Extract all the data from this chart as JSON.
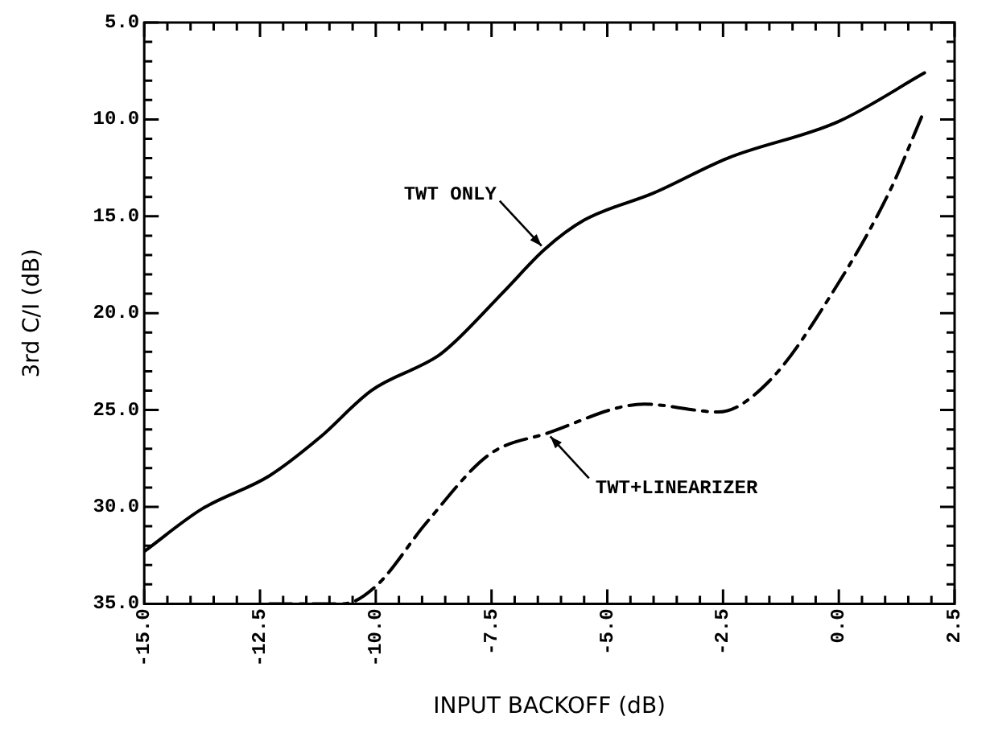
{
  "chart_data": {
    "type": "line",
    "xlabel": "INPUT BACKOFF (dB)",
    "ylabel": "3rd C/I (dB)",
    "xlim": [
      -15,
      2.5
    ],
    "ylim": [
      35,
      5
    ],
    "xticks": [
      {
        "value": -15,
        "label": "-15.0"
      },
      {
        "value": -12.5,
        "label": "-12.5"
      },
      {
        "value": -10,
        "label": "-10.0"
      },
      {
        "value": -7.5,
        "label": "-7.5"
      },
      {
        "value": -5,
        "label": "-5.0"
      },
      {
        "value": -2.5,
        "label": "-2.5"
      },
      {
        "value": 0,
        "label": "0.0"
      },
      {
        "value": 2.5,
        "label": "2.5"
      }
    ],
    "yticks": [
      {
        "value": 5,
        "label": "5.0"
      },
      {
        "value": 10,
        "label": "10.0"
      },
      {
        "value": 15,
        "label": "15.0"
      },
      {
        "value": 20,
        "label": "20.0"
      },
      {
        "value": 25,
        "label": "25.0"
      },
      {
        "value": 30,
        "label": "30.0"
      },
      {
        "value": 35,
        "label": "35.0"
      }
    ],
    "grid": false,
    "legend": false,
    "marker": "none",
    "series": [
      {
        "color": "#000000",
        "line_style": "solid",
        "x": [
          -15,
          -13.75,
          -12.3,
          -11.2,
          -10.1,
          -8.65,
          -8.3,
          -7.2,
          -6.35,
          -5.5,
          -4.0,
          -2.4,
          0,
          1.85
        ],
        "values": [
          32.3,
          30.1,
          28.4,
          26.4,
          24.0,
          22.2,
          21.5,
          18.8,
          16.7,
          15.2,
          13.8,
          12.0,
          10.1,
          7.6
        ]
      },
      {
        "color": "#000000",
        "line_style": "dashed",
        "x": [
          -12.3,
          -10.7,
          -10,
          -8.9,
          -7.55,
          -6.3,
          -4.2,
          -2.6,
          -1.5,
          -0.1,
          1.1,
          1.8
        ],
        "values": [
          35,
          35,
          34.1,
          30.8,
          27.3,
          26.2,
          24.7,
          25.1,
          23.5,
          18.8,
          13.7,
          9.8
        ]
      }
    ],
    "annotations": [
      {
        "text": "TWT ONLY",
        "x": -6.35,
        "y": 16.7
      },
      {
        "text": "TWT+LINEARIZER",
        "x": -6.3,
        "y": 26.2
      }
    ]
  }
}
